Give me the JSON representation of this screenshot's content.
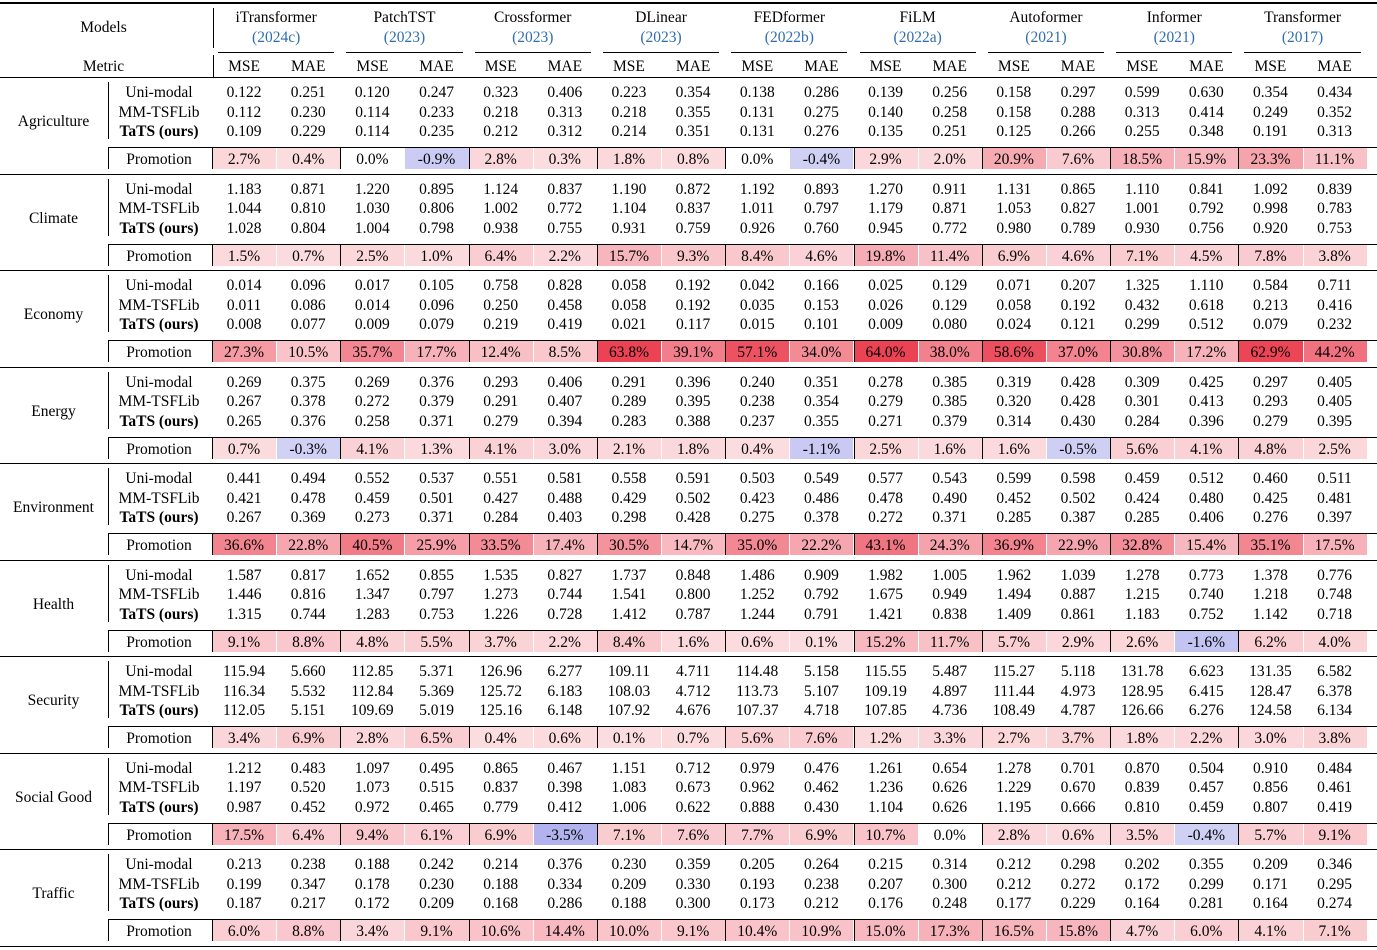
{
  "header": {
    "models_label": "Models",
    "metric_label": "Metric",
    "mse_label": "MSE",
    "mae_label": "MAE",
    "rows": [
      "Uni-modal",
      "MM-TSFLib",
      "TaTS (ours)"
    ],
    "promotion_label": "Promotion"
  },
  "models": [
    {
      "name": "iTransformer",
      "cite": "2024c"
    },
    {
      "name": "PatchTST",
      "cite": "2023"
    },
    {
      "name": "Crossformer",
      "cite": "2023"
    },
    {
      "name": "DLinear",
      "cite": "2023"
    },
    {
      "name": "FEDformer",
      "cite": "2022b"
    },
    {
      "name": "FiLM",
      "cite": "2022a"
    },
    {
      "name": "Autoformer",
      "cite": "2021"
    },
    {
      "name": "Informer",
      "cite": "2021"
    },
    {
      "name": "Transformer",
      "cite": "2017"
    }
  ],
  "colors": {
    "positive": "#e8283c",
    "negative": "#6464dc",
    "citation": "#2f6db0"
  },
  "domains": [
    {
      "name": "Agriculture",
      "uni": [
        "0.122",
        "0.251",
        "0.120",
        "0.247",
        "0.323",
        "0.406",
        "0.223",
        "0.354",
        "0.138",
        "0.286",
        "0.139",
        "0.256",
        "0.158",
        "0.297",
        "0.599",
        "0.630",
        "0.354",
        "0.434"
      ],
      "mm": [
        "0.112",
        "0.230",
        "0.114",
        "0.233",
        "0.218",
        "0.313",
        "0.218",
        "0.355",
        "0.131",
        "0.275",
        "0.140",
        "0.258",
        "0.158",
        "0.288",
        "0.313",
        "0.414",
        "0.249",
        "0.352"
      ],
      "tats": [
        "0.109",
        "0.229",
        "0.114",
        "0.235",
        "0.212",
        "0.312",
        "0.214",
        "0.351",
        "0.131",
        "0.276",
        "0.135",
        "0.251",
        "0.125",
        "0.266",
        "0.255",
        "0.348",
        "0.191",
        "0.313"
      ],
      "promo": [
        "2.7%",
        "0.4%",
        "0.0%",
        "-0.9%",
        "2.8%",
        "0.3%",
        "1.8%",
        "0.8%",
        "0.0%",
        "-0.4%",
        "2.9%",
        "2.0%",
        "20.9%",
        "7.6%",
        "18.5%",
        "15.9%",
        "23.3%",
        "11.1%"
      ]
    },
    {
      "name": "Climate",
      "uni": [
        "1.183",
        "0.871",
        "1.220",
        "0.895",
        "1.124",
        "0.837",
        "1.190",
        "0.872",
        "1.192",
        "0.893",
        "1.270",
        "0.911",
        "1.131",
        "0.865",
        "1.110",
        "0.841",
        "1.092",
        "0.839"
      ],
      "mm": [
        "1.044",
        "0.810",
        "1.030",
        "0.806",
        "1.002",
        "0.772",
        "1.104",
        "0.837",
        "1.011",
        "0.797",
        "1.179",
        "0.871",
        "1.053",
        "0.827",
        "1.001",
        "0.792",
        "0.998",
        "0.783"
      ],
      "tats": [
        "1.028",
        "0.804",
        "1.004",
        "0.798",
        "0.938",
        "0.755",
        "0.931",
        "0.759",
        "0.926",
        "0.760",
        "0.945",
        "0.772",
        "0.980",
        "0.789",
        "0.930",
        "0.756",
        "0.920",
        "0.753"
      ],
      "promo": [
        "1.5%",
        "0.7%",
        "2.5%",
        "1.0%",
        "6.4%",
        "2.2%",
        "15.7%",
        "9.3%",
        "8.4%",
        "4.6%",
        "19.8%",
        "11.4%",
        "6.9%",
        "4.6%",
        "7.1%",
        "4.5%",
        "7.8%",
        "3.8%"
      ]
    },
    {
      "name": "Economy",
      "uni": [
        "0.014",
        "0.096",
        "0.017",
        "0.105",
        "0.758",
        "0.828",
        "0.058",
        "0.192",
        "0.042",
        "0.166",
        "0.025",
        "0.129",
        "0.071",
        "0.207",
        "1.325",
        "1.110",
        "0.584",
        "0.711"
      ],
      "mm": [
        "0.011",
        "0.086",
        "0.014",
        "0.096",
        "0.250",
        "0.458",
        "0.058",
        "0.192",
        "0.035",
        "0.153",
        "0.026",
        "0.129",
        "0.058",
        "0.192",
        "0.432",
        "0.618",
        "0.213",
        "0.416"
      ],
      "tats": [
        "0.008",
        "0.077",
        "0.009",
        "0.079",
        "0.219",
        "0.419",
        "0.021",
        "0.117",
        "0.015",
        "0.101",
        "0.009",
        "0.080",
        "0.024",
        "0.121",
        "0.299",
        "0.512",
        "0.079",
        "0.232"
      ],
      "promo": [
        "27.3%",
        "10.5%",
        "35.7%",
        "17.7%",
        "12.4%",
        "8.5%",
        "63.8%",
        "39.1%",
        "57.1%",
        "34.0%",
        "64.0%",
        "38.0%",
        "58.6%",
        "37.0%",
        "30.8%",
        "17.2%",
        "62.9%",
        "44.2%"
      ]
    },
    {
      "name": "Energy",
      "uni": [
        "0.269",
        "0.375",
        "0.269",
        "0.376",
        "0.293",
        "0.406",
        "0.291",
        "0.396",
        "0.240",
        "0.351",
        "0.278",
        "0.385",
        "0.319",
        "0.428",
        "0.309",
        "0.425",
        "0.297",
        "0.405"
      ],
      "mm": [
        "0.267",
        "0.378",
        "0.272",
        "0.379",
        "0.291",
        "0.407",
        "0.289",
        "0.395",
        "0.238",
        "0.354",
        "0.279",
        "0.385",
        "0.320",
        "0.428",
        "0.301",
        "0.413",
        "0.293",
        "0.405"
      ],
      "tats": [
        "0.265",
        "0.376",
        "0.258",
        "0.371",
        "0.279",
        "0.394",
        "0.283",
        "0.388",
        "0.237",
        "0.355",
        "0.271",
        "0.379",
        "0.314",
        "0.430",
        "0.284",
        "0.396",
        "0.279",
        "0.395"
      ],
      "promo": [
        "0.7%",
        "-0.3%",
        "4.1%",
        "1.3%",
        "4.1%",
        "3.0%",
        "2.1%",
        "1.8%",
        "0.4%",
        "-1.1%",
        "2.5%",
        "1.6%",
        "1.6%",
        "-0.5%",
        "5.6%",
        "4.1%",
        "4.8%",
        "2.5%"
      ]
    },
    {
      "name": "Environment",
      "uni": [
        "0.441",
        "0.494",
        "0.552",
        "0.537",
        "0.551",
        "0.581",
        "0.558",
        "0.591",
        "0.503",
        "0.549",
        "0.577",
        "0.543",
        "0.599",
        "0.598",
        "0.459",
        "0.512",
        "0.460",
        "0.511"
      ],
      "mm": [
        "0.421",
        "0.478",
        "0.459",
        "0.501",
        "0.427",
        "0.488",
        "0.429",
        "0.502",
        "0.423",
        "0.486",
        "0.478",
        "0.490",
        "0.452",
        "0.502",
        "0.424",
        "0.480",
        "0.425",
        "0.481"
      ],
      "tats": [
        "0.267",
        "0.369",
        "0.273",
        "0.371",
        "0.284",
        "0.403",
        "0.298",
        "0.428",
        "0.275",
        "0.378",
        "0.272",
        "0.371",
        "0.285",
        "0.387",
        "0.285",
        "0.406",
        "0.276",
        "0.397"
      ],
      "promo": [
        "36.6%",
        "22.8%",
        "40.5%",
        "25.9%",
        "33.5%",
        "17.4%",
        "30.5%",
        "14.7%",
        "35.0%",
        "22.2%",
        "43.1%",
        "24.3%",
        "36.9%",
        "22.9%",
        "32.8%",
        "15.4%",
        "35.1%",
        "17.5%"
      ]
    },
    {
      "name": "Health",
      "uni": [
        "1.587",
        "0.817",
        "1.652",
        "0.855",
        "1.535",
        "0.827",
        "1.737",
        "0.848",
        "1.486",
        "0.909",
        "1.982",
        "1.005",
        "1.962",
        "1.039",
        "1.278",
        "0.773",
        "1.378",
        "0.776"
      ],
      "mm": [
        "1.446",
        "0.816",
        "1.347",
        "0.797",
        "1.273",
        "0.744",
        "1.541",
        "0.800",
        "1.252",
        "0.792",
        "1.675",
        "0.949",
        "1.494",
        "0.887",
        "1.215",
        "0.740",
        "1.218",
        "0.748"
      ],
      "tats": [
        "1.315",
        "0.744",
        "1.283",
        "0.753",
        "1.226",
        "0.728",
        "1.412",
        "0.787",
        "1.244",
        "0.791",
        "1.421",
        "0.838",
        "1.409",
        "0.861",
        "1.183",
        "0.752",
        "1.142",
        "0.718"
      ],
      "promo": [
        "9.1%",
        "8.8%",
        "4.8%",
        "5.5%",
        "3.7%",
        "2.2%",
        "8.4%",
        "1.6%",
        "0.6%",
        "0.1%",
        "15.2%",
        "11.7%",
        "5.7%",
        "2.9%",
        "2.6%",
        "-1.6%",
        "6.2%",
        "4.0%"
      ]
    },
    {
      "name": "Security",
      "uni": [
        "115.94",
        "5.660",
        "112.85",
        "5.371",
        "126.96",
        "6.277",
        "109.11",
        "4.711",
        "114.48",
        "5.158",
        "115.55",
        "5.487",
        "115.27",
        "5.118",
        "131.78",
        "6.623",
        "131.35",
        "6.582"
      ],
      "mm": [
        "116.34",
        "5.532",
        "112.84",
        "5.369",
        "125.72",
        "6.183",
        "108.03",
        "4.712",
        "113.73",
        "5.107",
        "109.19",
        "4.897",
        "111.44",
        "4.973",
        "128.95",
        "6.415",
        "128.47",
        "6.378"
      ],
      "tats": [
        "112.05",
        "5.151",
        "109.69",
        "5.019",
        "125.16",
        "6.148",
        "107.92",
        "4.676",
        "107.37",
        "4.718",
        "107.85",
        "4.736",
        "108.49",
        "4.787",
        "126.66",
        "6.276",
        "124.58",
        "6.134"
      ],
      "promo": [
        "3.4%",
        "6.9%",
        "2.8%",
        "6.5%",
        "0.4%",
        "0.6%",
        "0.1%",
        "0.7%",
        "5.6%",
        "7.6%",
        "1.2%",
        "3.3%",
        "2.7%",
        "3.7%",
        "1.8%",
        "2.2%",
        "3.0%",
        "3.8%"
      ]
    },
    {
      "name": "Social Good",
      "uni": [
        "1.212",
        "0.483",
        "1.097",
        "0.495",
        "0.865",
        "0.467",
        "1.151",
        "0.712",
        "0.979",
        "0.476",
        "1.261",
        "0.654",
        "1.278",
        "0.701",
        "0.870",
        "0.504",
        "0.910",
        "0.484"
      ],
      "mm": [
        "1.197",
        "0.520",
        "1.073",
        "0.515",
        "0.837",
        "0.398",
        "1.083",
        "0.673",
        "0.962",
        "0.462",
        "1.236",
        "0.626",
        "1.229",
        "0.670",
        "0.839",
        "0.457",
        "0.856",
        "0.461"
      ],
      "tats": [
        "0.987",
        "0.452",
        "0.972",
        "0.465",
        "0.779",
        "0.412",
        "1.006",
        "0.622",
        "0.888",
        "0.430",
        "1.104",
        "0.626",
        "1.195",
        "0.666",
        "0.810",
        "0.459",
        "0.807",
        "0.419"
      ],
      "promo": [
        "17.5%",
        "6.4%",
        "9.4%",
        "6.1%",
        "6.9%",
        "-3.5%",
        "7.1%",
        "7.6%",
        "7.7%",
        "6.9%",
        "10.7%",
        "0.0%",
        "2.8%",
        "0.6%",
        "3.5%",
        "-0.4%",
        "5.7%",
        "9.1%"
      ]
    },
    {
      "name": "Traffic",
      "uni": [
        "0.213",
        "0.238",
        "0.188",
        "0.242",
        "0.214",
        "0.376",
        "0.230",
        "0.359",
        "0.205",
        "0.264",
        "0.215",
        "0.314",
        "0.212",
        "0.298",
        "0.202",
        "0.355",
        "0.209",
        "0.346"
      ],
      "mm": [
        "0.199",
        "0.347",
        "0.178",
        "0.230",
        "0.188",
        "0.334",
        "0.209",
        "0.330",
        "0.193",
        "0.238",
        "0.207",
        "0.300",
        "0.212",
        "0.272",
        "0.172",
        "0.299",
        "0.171",
        "0.295"
      ],
      "tats": [
        "0.187",
        "0.217",
        "0.172",
        "0.209",
        "0.168",
        "0.286",
        "0.188",
        "0.300",
        "0.173",
        "0.212",
        "0.176",
        "0.248",
        "0.177",
        "0.229",
        "0.164",
        "0.281",
        "0.164",
        "0.274"
      ],
      "promo": [
        "6.0%",
        "8.8%",
        "3.4%",
        "9.1%",
        "10.6%",
        "14.4%",
        "10.0%",
        "9.1%",
        "10.4%",
        "10.9%",
        "15.0%",
        "17.3%",
        "16.5%",
        "15.8%",
        "4.7%",
        "6.0%",
        "4.1%",
        "7.1%"
      ]
    }
  ]
}
